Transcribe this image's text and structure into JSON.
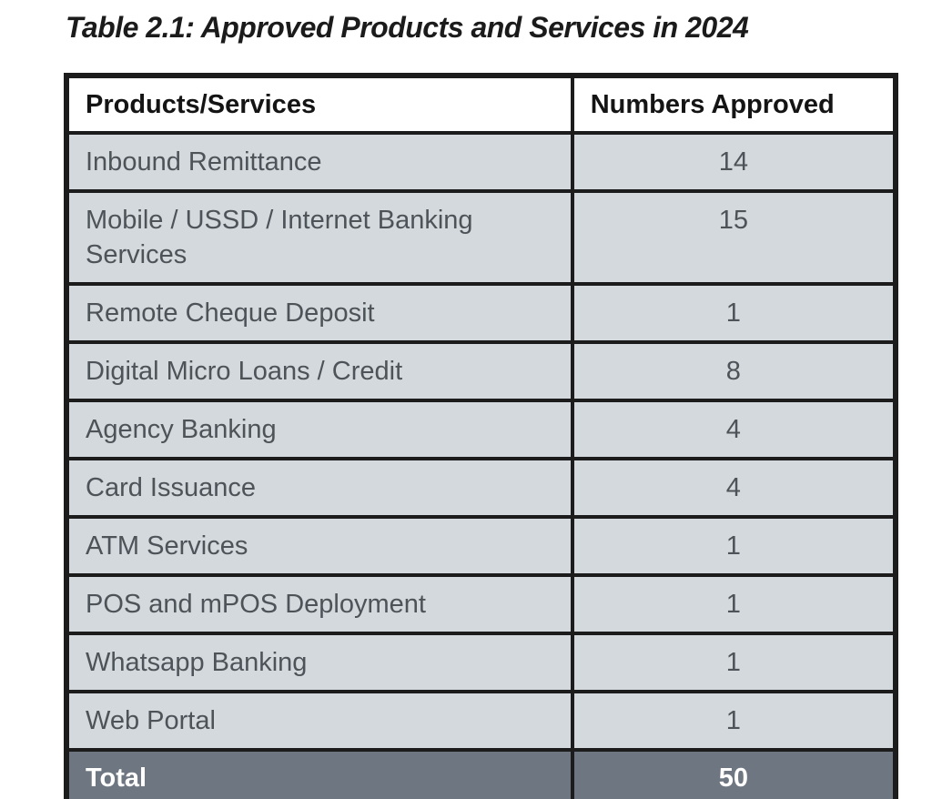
{
  "page": {
    "title": "Table 2.1: Approved Products and Services in 2024"
  },
  "table": {
    "columns": [
      "Products/Services",
      "Numbers Approved"
    ],
    "rows": [
      {
        "product": "Inbound Remittance",
        "approved": "14"
      },
      {
        "product": "Mobile / USSD / Internet Banking Services",
        "approved": "15"
      },
      {
        "product": "Remote Cheque Deposit",
        "approved": "1"
      },
      {
        "product": "Digital Micro Loans / Credit",
        "approved": "8"
      },
      {
        "product": "Agency Banking",
        "approved": "4"
      },
      {
        "product": "Card Issuance",
        "approved": "4"
      },
      {
        "product": "ATM Services",
        "approved": "1"
      },
      {
        "product": "POS and mPOS Deployment",
        "approved": "1"
      },
      {
        "product": "Whatsapp Banking",
        "approved": "1"
      },
      {
        "product": "Web Portal",
        "approved": "1"
      }
    ],
    "total": {
      "label": "Total",
      "approved": "50"
    }
  },
  "colors": {
    "row_bg": "#d3d9dc",
    "total_bg": "#6e7681",
    "border": "#1c1c1c",
    "data_text": "#4d5358",
    "header_text": "#141414",
    "total_text": "#ffffff"
  }
}
